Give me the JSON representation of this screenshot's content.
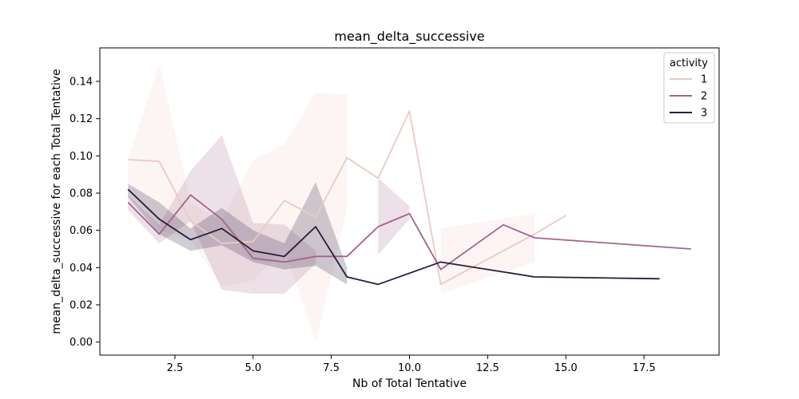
{
  "chart_data": {
    "type": "line",
    "title": "mean_delta_successive",
    "xlabel": "Nb of Total Tentative",
    "ylabel": "mean_delta_successive for each Total Tentative",
    "xlim": [
      0.1,
      19.9
    ],
    "ylim": [
      -0.007,
      0.158
    ],
    "xticks": [
      2.5,
      5.0,
      7.5,
      10.0,
      12.5,
      15.0,
      17.5
    ],
    "xtick_labels": [
      "2.5",
      "5.0",
      "7.5",
      "10.0",
      "12.5",
      "15.0",
      "17.5"
    ],
    "yticks": [
      0.0,
      0.02,
      0.04,
      0.06,
      0.08,
      0.1,
      0.12,
      0.14
    ],
    "ytick_labels": [
      "0.00",
      "0.02",
      "0.04",
      "0.06",
      "0.08",
      "0.10",
      "0.12",
      "0.14"
    ],
    "grid": false,
    "legend": {
      "title": "activity",
      "placement": "top-right"
    },
    "series": [
      {
        "name": "1",
        "color": "#ecc9c4",
        "band_opacity": 0.18,
        "points": [
          {
            "x": 1,
            "y": 0.098,
            "lo": 0.085,
            "hi": 0.098
          },
          {
            "x": 2,
            "y": 0.097,
            "lo": 0.06,
            "hi": 0.15
          },
          {
            "x": 3,
            "y": 0.065,
            "lo": 0.055,
            "hi": 0.075
          },
          {
            "x": 4,
            "y": 0.053,
            "lo": 0.03,
            "hi": 0.065
          },
          {
            "x": 5,
            "y": 0.054,
            "lo": 0.033,
            "hi": 0.098
          },
          {
            "x": 6,
            "y": 0.076,
            "lo": 0.05,
            "hi": 0.106
          },
          {
            "x": 7,
            "y": 0.067,
            "lo": 0.0,
            "hi": 0.134
          },
          {
            "x": 8,
            "y": 0.099,
            "lo": 0.071,
            "hi": 0.133
          },
          {
            "x": 9,
            "y": 0.088
          },
          {
            "x": 10,
            "y": 0.124
          },
          {
            "x": 11,
            "y": 0.031,
            "lo": 0.026,
            "hi": 0.061
          },
          {
            "x": 14,
            "y": 0.058,
            "lo": 0.043,
            "hi": 0.069
          },
          {
            "x": 15,
            "y": 0.068
          }
        ]
      },
      {
        "name": "2",
        "color": "#a3638c",
        "band_opacity": 0.2,
        "points": [
          {
            "x": 1,
            "y": 0.075,
            "lo": 0.071,
            "hi": 0.079
          },
          {
            "x": 2,
            "y": 0.058,
            "lo": 0.053,
            "hi": 0.063
          },
          {
            "x": 3,
            "y": 0.079,
            "lo": 0.065,
            "hi": 0.092
          },
          {
            "x": 4,
            "y": 0.066,
            "lo": 0.028,
            "hi": 0.111
          },
          {
            "x": 5,
            "y": 0.045,
            "lo": 0.026,
            "hi": 0.064
          },
          {
            "x": 6,
            "y": 0.043,
            "lo": 0.026,
            "hi": 0.063
          },
          {
            "x": 7,
            "y": 0.046,
            "lo": 0.042,
            "hi": 0.049
          },
          {
            "x": 8,
            "y": 0.046
          },
          {
            "x": 9,
            "y": 0.062,
            "lo": 0.047,
            "hi": 0.088
          },
          {
            "x": 10,
            "y": 0.069,
            "lo": 0.066,
            "hi": 0.073
          },
          {
            "x": 11,
            "y": 0.039
          },
          {
            "x": 13,
            "y": 0.063
          },
          {
            "x": 14,
            "y": 0.056
          },
          {
            "x": 19,
            "y": 0.05
          }
        ]
      },
      {
        "name": "3",
        "color": "#2b1c3a",
        "band_opacity": 0.22,
        "points": [
          {
            "x": 1,
            "y": 0.082,
            "lo": 0.078,
            "hi": 0.085
          },
          {
            "x": 2,
            "y": 0.066,
            "lo": 0.058,
            "hi": 0.075
          },
          {
            "x": 3,
            "y": 0.055,
            "lo": 0.049,
            "hi": 0.061
          },
          {
            "x": 4,
            "y": 0.061,
            "lo": 0.052,
            "hi": 0.072
          },
          {
            "x": 5,
            "y": 0.049,
            "lo": 0.043,
            "hi": 0.06
          },
          {
            "x": 6,
            "y": 0.046,
            "lo": 0.039,
            "hi": 0.053
          },
          {
            "x": 7,
            "y": 0.062,
            "lo": 0.041,
            "hi": 0.086
          },
          {
            "x": 8,
            "y": 0.035,
            "lo": 0.031,
            "hi": 0.04
          },
          {
            "x": 9,
            "y": 0.031
          },
          {
            "x": 11,
            "y": 0.043
          },
          {
            "x": 14,
            "y": 0.035
          },
          {
            "x": 18,
            "y": 0.034
          }
        ]
      }
    ]
  }
}
